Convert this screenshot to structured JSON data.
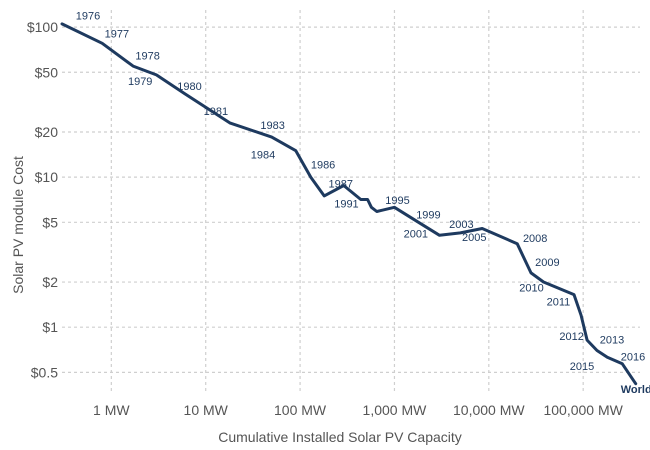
{
  "chart_data": {
    "type": "line",
    "xlabel": "Cumulative Installed Solar PV Capacity",
    "ylabel": "Solar PV module Cost",
    "x_scale": "log",
    "y_scale": "log",
    "xlim_mw": [
      0.3,
      400000
    ],
    "ylim_usd": [
      0.37,
      115
    ],
    "grid": true,
    "x_ticks": [
      {
        "value": 1,
        "label": "1 MW"
      },
      {
        "value": 10,
        "label": "10 MW"
      },
      {
        "value": 100,
        "label": "100 MW"
      },
      {
        "value": 1000,
        "label": "1,000 MW"
      },
      {
        "value": 10000,
        "label": "10,000 MW"
      },
      {
        "value": 100000,
        "label": "100,000 MW"
      }
    ],
    "y_ticks": [
      {
        "value": 100,
        "label": "$100"
      },
      {
        "value": 50,
        "label": "$50"
      },
      {
        "value": 20,
        "label": "$20"
      },
      {
        "value": 10,
        "label": "$10"
      },
      {
        "value": 5,
        "label": "$5"
      },
      {
        "value": 2,
        "label": "$2"
      },
      {
        "value": 1,
        "label": "$1"
      },
      {
        "value": 0.5,
        "label": "$0.5"
      }
    ],
    "series": [
      {
        "name": "World",
        "color": "#1e3a5f",
        "points": [
          {
            "x": 0.3,
            "y": 105
          },
          {
            "x": 0.8,
            "y": 78
          },
          {
            "x": 1.7,
            "y": 55
          },
          {
            "x": 3.0,
            "y": 48
          },
          {
            "x": 6.0,
            "y": 36
          },
          {
            "x": 18,
            "y": 23
          },
          {
            "x": 50,
            "y": 18.5
          },
          {
            "x": 90,
            "y": 15
          },
          {
            "x": 130,
            "y": 10
          },
          {
            "x": 180,
            "y": 7.5
          },
          {
            "x": 290,
            "y": 8.8
          },
          {
            "x": 440,
            "y": 7.1
          },
          {
            "x": 520,
            "y": 7.1
          },
          {
            "x": 570,
            "y": 6.3
          },
          {
            "x": 650,
            "y": 5.9
          },
          {
            "x": 1000,
            "y": 6.3
          },
          {
            "x": 1800,
            "y": 5.0
          },
          {
            "x": 3000,
            "y": 4.1
          },
          {
            "x": 5000,
            "y": 4.25
          },
          {
            "x": 8500,
            "y": 4.55
          },
          {
            "x": 20000,
            "y": 3.6
          },
          {
            "x": 28000,
            "y": 2.3
          },
          {
            "x": 38000,
            "y": 2.0
          },
          {
            "x": 80000,
            "y": 1.65
          },
          {
            "x": 95000,
            "y": 1.2
          },
          {
            "x": 110000,
            "y": 0.82
          },
          {
            "x": 140000,
            "y": 0.7
          },
          {
            "x": 180000,
            "y": 0.63
          },
          {
            "x": 260000,
            "y": 0.57
          },
          {
            "x": 360000,
            "y": 0.42
          }
        ]
      }
    ],
    "point_labels": [
      {
        "text": "1976",
        "x": 0.42,
        "y": 112,
        "anchor": "start"
      },
      {
        "text": "1977",
        "x": 0.85,
        "y": 85,
        "anchor": "start"
      },
      {
        "text": "1978",
        "x": 1.8,
        "y": 61,
        "anchor": "start"
      },
      {
        "text": "1979",
        "x": 1.5,
        "y": 41,
        "anchor": "start"
      },
      {
        "text": "1980",
        "x": 5.0,
        "y": 38,
        "anchor": "start"
      },
      {
        "text": "1981",
        "x": 9.5,
        "y": 26,
        "anchor": "start"
      },
      {
        "text": "1983",
        "x": 38,
        "y": 21,
        "anchor": "start"
      },
      {
        "text": "1984",
        "x": 30,
        "y": 13.3,
        "anchor": "start"
      },
      {
        "text": "1986",
        "x": 130,
        "y": 11.4,
        "anchor": "start"
      },
      {
        "text": "1987",
        "x": 200,
        "y": 8.5,
        "anchor": "start"
      },
      {
        "text": "1991",
        "x": 230,
        "y": 6.3,
        "anchor": "start"
      },
      {
        "text": "1995",
        "x": 800,
        "y": 6.6,
        "anchor": "start"
      },
      {
        "text": "1999",
        "x": 1700,
        "y": 5.3,
        "anchor": "start"
      },
      {
        "text": "2001",
        "x": 1250,
        "y": 3.95,
        "anchor": "start"
      },
      {
        "text": "2003",
        "x": 3800,
        "y": 4.6,
        "anchor": "start"
      },
      {
        "text": "2005",
        "x": 5200,
        "y": 3.75,
        "anchor": "start"
      },
      {
        "text": "2008",
        "x": 23000,
        "y": 3.7,
        "anchor": "start"
      },
      {
        "text": "2009",
        "x": 31000,
        "y": 2.55,
        "anchor": "start"
      },
      {
        "text": "2010",
        "x": 21000,
        "y": 1.73,
        "anchor": "start"
      },
      {
        "text": "2011",
        "x": 41000,
        "y": 1.4,
        "anchor": "start"
      },
      {
        "text": "2012",
        "x": 56000,
        "y": 0.82,
        "anchor": "start"
      },
      {
        "text": "2013",
        "x": 150000,
        "y": 0.78,
        "anchor": "start"
      },
      {
        "text": "2015",
        "x": 72000,
        "y": 0.52,
        "anchor": "start"
      },
      {
        "text": "2016",
        "x": 250000,
        "y": 0.6,
        "anchor": "start"
      }
    ],
    "series_label": {
      "text": "World",
      "x": 250000,
      "y": 0.365,
      "anchor": "start"
    }
  }
}
